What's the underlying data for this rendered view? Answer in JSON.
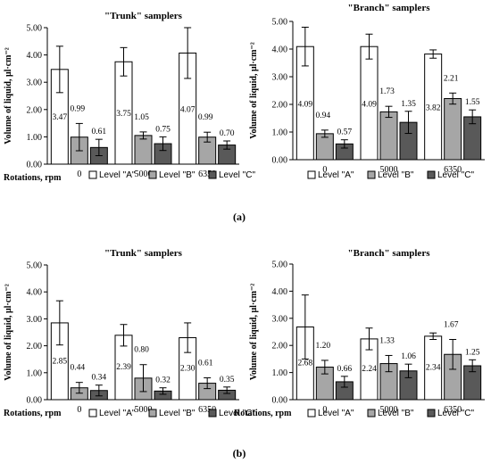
{
  "captions": [
    "(a)",
    "(b)"
  ],
  "chart_data": [
    {
      "type": "bar",
      "title": "\"Trunk\" samplers",
      "xlabel": "Rotations, rpm",
      "ylabel": "Volume of liquid, μl·cm⁻²",
      "categories": [
        "0",
        "5000",
        "6350"
      ],
      "ylim": [
        0,
        5
      ],
      "yticks": [
        "0.00",
        "1.00",
        "2.00",
        "3.00",
        "4.00",
        "5.00"
      ],
      "error_bars": true,
      "series": [
        {
          "name": "Level \"A\"",
          "color": "#ffffff",
          "values": [
            3.47,
            3.75,
            4.07
          ],
          "errors": [
            0.85,
            0.52,
            0.93
          ],
          "labels": [
            "3.47",
            "3.75",
            "4.07"
          ]
        },
        {
          "name": "Level \"B\"",
          "color": "#a6a6a6",
          "values": [
            0.99,
            1.05,
            0.99
          ],
          "errors": [
            0.5,
            0.13,
            0.18
          ],
          "labels": [
            "0.99",
            "1.05",
            "0.99"
          ]
        },
        {
          "name": "Level \"C\"",
          "color": "#595959",
          "values": [
            0.61,
            0.75,
            0.7
          ],
          "errors": [
            0.3,
            0.25,
            0.15
          ],
          "labels": [
            "0.61",
            "0.75",
            "0.70"
          ]
        }
      ]
    },
    {
      "type": "bar",
      "title": "\"Branch\" samplers",
      "xlabel": "",
      "ylabel": "Volume of liquid, μl·cm⁻²",
      "categories": [
        "0",
        "5000",
        "6350"
      ],
      "ylim": [
        0,
        5
      ],
      "yticks": [
        "0.00",
        "1.00",
        "2.00",
        "3.00",
        "4.00",
        "5.00"
      ],
      "error_bars": true,
      "series": [
        {
          "name": "Level \"A\"",
          "color": "#ffffff",
          "values": [
            4.09,
            4.09,
            3.82
          ],
          "errors": [
            0.7,
            0.45,
            0.15
          ],
          "labels": [
            "4.09",
            "4.09",
            "3.82"
          ]
        },
        {
          "name": "Level \"B\"",
          "color": "#a6a6a6",
          "values": [
            0.94,
            1.73,
            2.21
          ],
          "errors": [
            0.13,
            0.2,
            0.2
          ],
          "labels": [
            "0.94",
            "1.73",
            "2.21"
          ]
        },
        {
          "name": "Level \"C\"",
          "color": "#595959",
          "values": [
            0.57,
            1.35,
            1.55
          ],
          "errors": [
            0.15,
            0.4,
            0.25
          ],
          "labels": [
            "0.57",
            "1.35",
            "1.55"
          ]
        }
      ]
    },
    {
      "type": "bar",
      "title": "\"Trunk\" samplers",
      "xlabel": "Rotations, rpm",
      "ylabel": "Volume of liquid, μl·cm⁻²",
      "categories": [
        "0",
        "5000",
        "6350"
      ],
      "ylim": [
        0,
        5
      ],
      "yticks": [
        "0.00",
        "1.00",
        "2.00",
        "3.00",
        "4.00",
        "5.00"
      ],
      "error_bars": true,
      "series": [
        {
          "name": "Level \"A\"",
          "color": "#ffffff",
          "values": [
            2.85,
            2.39,
            2.3
          ],
          "errors": [
            0.82,
            0.4,
            0.55
          ],
          "labels": [
            "2.85",
            "2.39",
            "2.30"
          ]
        },
        {
          "name": "Level \"B\"",
          "color": "#a6a6a6",
          "values": [
            0.44,
            0.8,
            0.61
          ],
          "errors": [
            0.2,
            0.5,
            0.2
          ],
          "labels": [
            "0.44",
            "0.80",
            "0.61"
          ]
        },
        {
          "name": "Level \"C\"",
          "color": "#595959",
          "values": [
            0.34,
            0.32,
            0.35
          ],
          "errors": [
            0.2,
            0.12,
            0.12
          ],
          "labels": [
            "0.34",
            "0.32",
            "0.35"
          ]
        }
      ]
    },
    {
      "type": "bar",
      "title": "\"Branch\" samplers",
      "xlabel": "Rotations, rpm",
      "ylabel": "Volume of liquid, μl·cm⁻²",
      "categories": [
        "0",
        "5000",
        "6350"
      ],
      "ylim": [
        0,
        5
      ],
      "yticks": [
        "0.00",
        "1.00",
        "2.00",
        "3.00",
        "4.00",
        "5.00"
      ],
      "error_bars": true,
      "series": [
        {
          "name": "Level \"A\"",
          "color": "#ffffff",
          "values": [
            2.68,
            2.24,
            2.34
          ],
          "errors": [
            1.18,
            0.4,
            0.12
          ],
          "labels": [
            "2.68",
            "2.24",
            "2.34"
          ]
        },
        {
          "name": "Level \"B\"",
          "color": "#a6a6a6",
          "values": [
            1.2,
            1.33,
            1.67
          ],
          "errors": [
            0.25,
            0.3,
            0.55
          ],
          "labels": [
            "1.20",
            "1.33",
            "1.67"
          ]
        },
        {
          "name": "Level \"C\"",
          "color": "#595959",
          "values": [
            0.66,
            1.06,
            1.25
          ],
          "errors": [
            0.2,
            0.25,
            0.22
          ],
          "labels": [
            "0.66",
            "1.06",
            "1.25"
          ]
        }
      ]
    }
  ]
}
